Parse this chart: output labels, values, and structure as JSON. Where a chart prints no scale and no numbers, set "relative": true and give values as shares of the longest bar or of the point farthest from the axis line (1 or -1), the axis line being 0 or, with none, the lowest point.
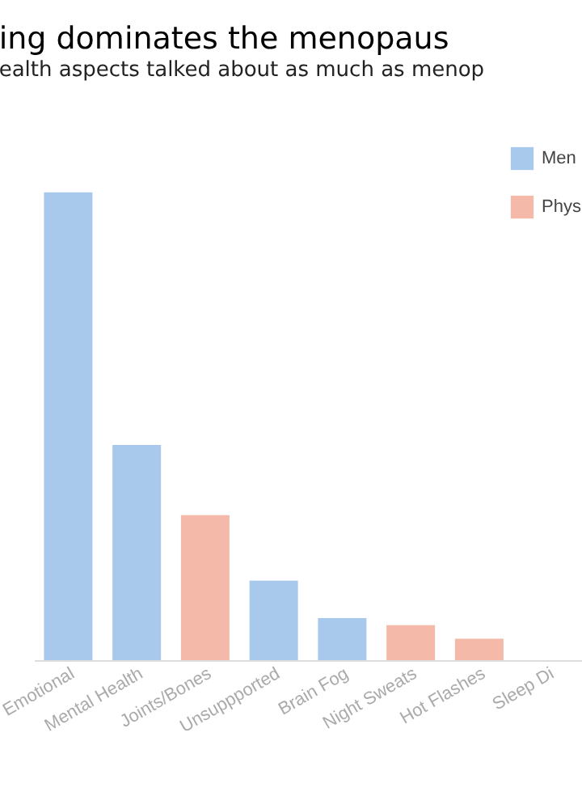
{
  "chart_data": {
    "type": "bar",
    "title": "ing dominates the menopaus",
    "subtitle": "ealth aspects talked about as much as menop",
    "relative": true,
    "categories": [
      "Emotional",
      "Mental Health",
      "Joints/Bones",
      "Unsuppported",
      "Brain Fog",
      "Night Sweats",
      "Hot Flashes",
      "Sleep Di"
    ],
    "series": [
      {
        "name": "Men",
        "color": "#a8c8ec",
        "values": [
          1.0,
          0.46,
          null,
          0.17,
          0.09,
          null,
          null,
          null
        ]
      },
      {
        "name": "Phys",
        "color": "#f4b9a8",
        "values": [
          null,
          null,
          0.31,
          null,
          null,
          0.075,
          0.046,
          null
        ]
      }
    ],
    "legend": "top right",
    "grid": false
  }
}
